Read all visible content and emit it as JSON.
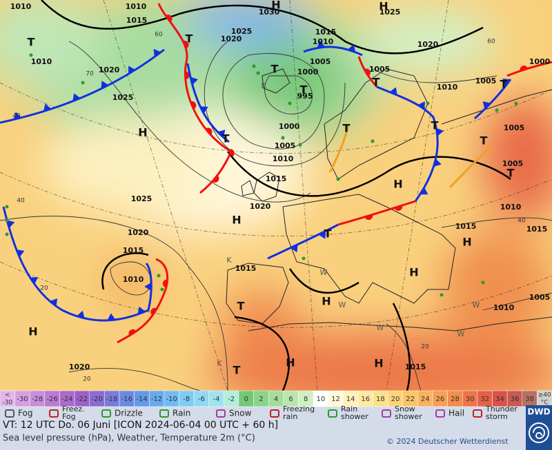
{
  "map": {
    "isobar_labels": [
      "1010",
      "1010",
      "1015",
      "1030",
      "1025",
      "1025",
      "1020",
      "1015",
      "1010",
      "1005",
      "1000",
      "995",
      "1000",
      "1005",
      "1010",
      "1015",
      "1020",
      "1025",
      "1025",
      "1020",
      "1010",
      "1020",
      "1005",
      "1010",
      "1005",
      "1000",
      "1005",
      "1005",
      "1010",
      "1015",
      "1015",
      "1020",
      "1015",
      "1010",
      "1015",
      "1005",
      "1010",
      "1020",
      "1015"
    ],
    "temperature_labels": [
      "60",
      "40",
      "40",
      "40",
      "20",
      "20",
      "20",
      "70",
      "60"
    ],
    "high_labels": [
      "H",
      "H",
      "H",
      "H",
      "H",
      "H",
      "H",
      "H",
      "H",
      "H",
      "H"
    ],
    "low_labels": [
      "T",
      "T",
      "T",
      "T",
      "T",
      "T",
      "T",
      "T",
      "T",
      "T",
      "T",
      "T",
      "T",
      "T"
    ],
    "airmass_labels": [
      "K",
      "W",
      "W",
      "W",
      "K",
      "W",
      "W",
      "K"
    ]
  },
  "legend": {
    "scale": [
      {
        "label": [
          "<",
          "-30"
        ],
        "color": "#e3b5ea"
      },
      {
        "label": [
          "-30"
        ],
        "color": "#d59fe2"
      },
      {
        "label": [
          "-28"
        ],
        "color": "#c98ddb"
      },
      {
        "label": [
          "-26"
        ],
        "color": "#bb7bd3"
      },
      {
        "label": [
          "-24"
        ],
        "color": "#ac6acb"
      },
      {
        "label": [
          "-22"
        ],
        "color": "#9c60c8"
      },
      {
        "label": [
          "-20"
        ],
        "color": "#8a6cd2"
      },
      {
        "label": [
          "-18"
        ],
        "color": "#7a7bda"
      },
      {
        "label": [
          "-16"
        ],
        "color": "#6b8ae2"
      },
      {
        "label": [
          "-14"
        ],
        "color": "#629aea"
      },
      {
        "label": [
          "-12"
        ],
        "color": "#68aaef"
      },
      {
        "label": [
          "-10"
        ],
        "color": "#72bbf2"
      },
      {
        "label": [
          "-8"
        ],
        "color": "#80cbf4"
      },
      {
        "label": [
          "-6"
        ],
        "color": "#8fd8f3"
      },
      {
        "label": [
          "-4"
        ],
        "color": "#a0e3ee"
      },
      {
        "label": [
          "-2"
        ],
        "color": "#b2eddc"
      },
      {
        "label": [
          "0"
        ],
        "color": "#74c874"
      },
      {
        "label": [
          "2"
        ],
        "color": "#8cd38a"
      },
      {
        "label": [
          "4"
        ],
        "color": "#a4dc9c"
      },
      {
        "label": [
          "6"
        ],
        "color": "#b9e6ae"
      },
      {
        "label": [
          "8"
        ],
        "color": "#ceefc2"
      },
      {
        "label": [
          "10"
        ],
        "color": "#ffffff"
      },
      {
        "label": [
          "12"
        ],
        "color": "#fff8dc"
      },
      {
        "label": [
          "14"
        ],
        "color": "#fff0bc"
      },
      {
        "label": [
          "16"
        ],
        "color": "#ffe8a2"
      },
      {
        "label": [
          "18"
        ],
        "color": "#fde08c"
      },
      {
        "label": [
          "20"
        ],
        "color": "#fcd478"
      },
      {
        "label": [
          "22"
        ],
        "color": "#fbc46a"
      },
      {
        "label": [
          "24"
        ],
        "color": "#f9b25e"
      },
      {
        "label": [
          "26"
        ],
        "color": "#f6a054"
      },
      {
        "label": [
          "28"
        ],
        "color": "#f38c4e"
      },
      {
        "label": [
          "30"
        ],
        "color": "#ee744a"
      },
      {
        "label": [
          "32"
        ],
        "color": "#e66048"
      },
      {
        "label": [
          "34"
        ],
        "color": "#d8524a"
      },
      {
        "label": [
          "36"
        ],
        "color": "#c85a52"
      },
      {
        "label": [
          "38"
        ],
        "color": "#b87064"
      },
      {
        "label": [
          "≥40",
          "°C"
        ],
        "color": "#d0d0d0"
      }
    ],
    "symbols": [
      [
        "Fog"
      ],
      [
        "Freez.",
        "Fog"
      ],
      [
        "Drizzle"
      ],
      [
        "Rain"
      ],
      [
        "Snow"
      ],
      [
        "Freezing",
        "rain"
      ],
      [
        "Rain",
        "shower"
      ],
      [
        "Snow",
        "shower"
      ],
      [
        "Hail"
      ],
      [
        "Thunder",
        "storm"
      ]
    ]
  },
  "footer": {
    "valid_time": "VT: 12 UTC Do.   06 Juni [ICON 2024-06-04  00 UTC + 60 h]",
    "description": "Sea level pressure (hPa), Weather, Temperature 2m (°C)",
    "copyright": "© 2024 Deutscher Wetterdienst",
    "logo": "DWD"
  }
}
